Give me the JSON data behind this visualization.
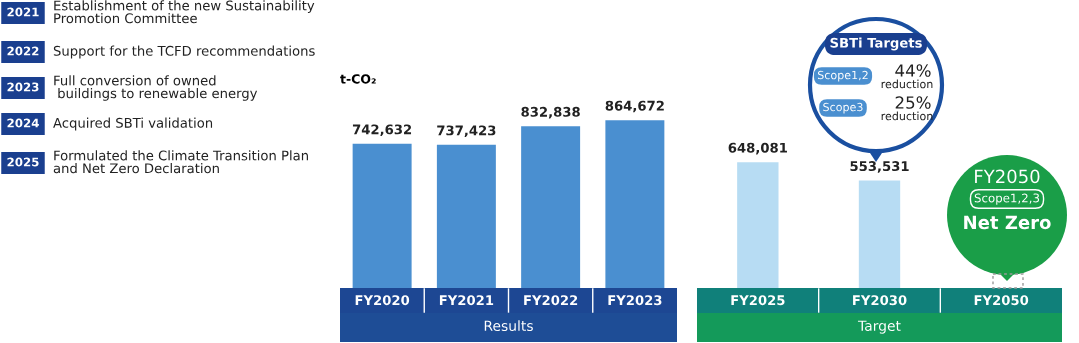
{
  "chart_data": [
    {
      "type": "bar",
      "ylabel": "t-CO₂",
      "xlabel": "Results",
      "categories": [
        "FY2020",
        "FY2021",
        "FY2022",
        "FY2023"
      ],
      "values": [
        742632,
        737423,
        832838,
        864672
      ],
      "value_labels": [
        "742,632",
        "737,423",
        "832,838",
        "864,672"
      ],
      "color": "#4a8fd0",
      "annotations": [
        "2021",
        "Establishment of the new Sustainability\nPromotion Committee",
        "2022",
        "Support for the TCFD recommendations",
        "2023",
        "Full conversion of owned\n buildings to renewable energy",
        "2024",
        "Acquired SBTi validation",
        "2025",
        "Formulated the Climate Transition Plan\nand Net Zero Declaration"
      ]
    },
    {
      "type": "bar",
      "xlabel": "Target",
      "categories": [
        "FY2025",
        "FY2030",
        "FY2050"
      ],
      "values": [
        648081,
        553531,
        null
      ],
      "value_labels": [
        "648,081",
        "553,531",
        null
      ],
      "color": "#b7dcf3",
      "annotations": [
        "SBTi Targets",
        "Scope1,2",
        "44%",
        "reduction",
        "Scope3",
        "25%",
        "reduction",
        "FY2050",
        "Scope1,2,3",
        "Net Zero"
      ]
    }
  ]
}
